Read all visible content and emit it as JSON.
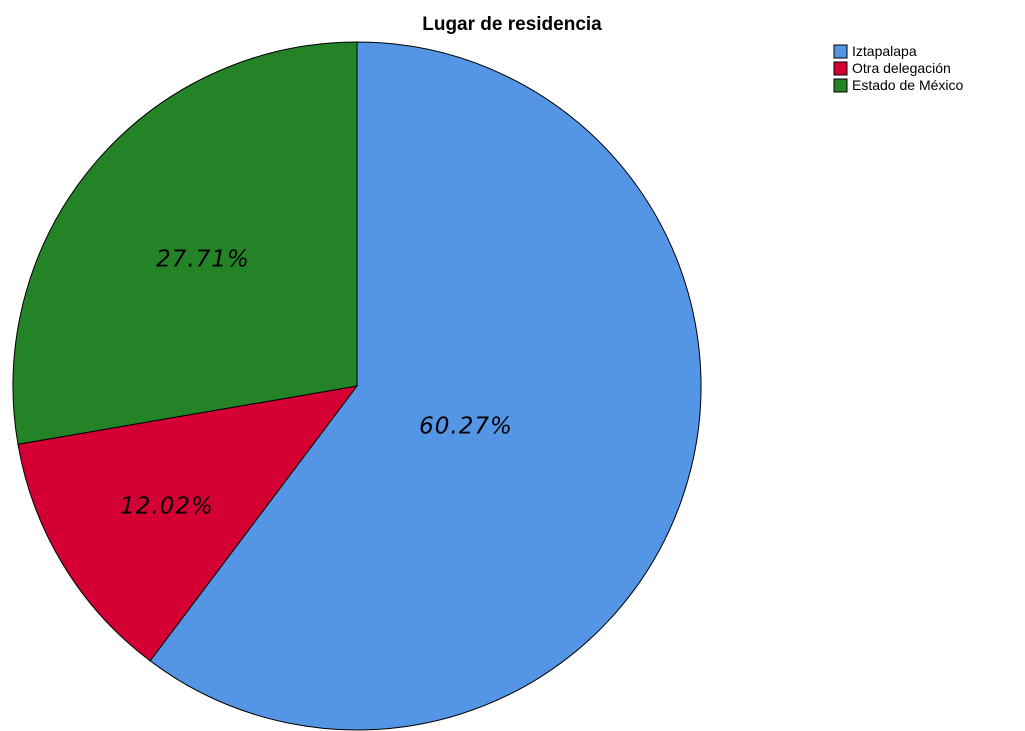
{
  "chart_data": {
    "type": "pie",
    "title": "Lugar de residencia",
    "categories": [
      "Iztapalapa",
      "Otra delegación",
      "Estado de México"
    ],
    "values": [
      60.27,
      12.02,
      27.71
    ],
    "labels": [
      "60.27%",
      "12.02%",
      "27.71%"
    ],
    "colors": [
      "#5595e6",
      "#d40033",
      "#248327"
    ],
    "start_angle": "12 o'clock",
    "direction": "clockwise",
    "legend_position": "top-right"
  }
}
